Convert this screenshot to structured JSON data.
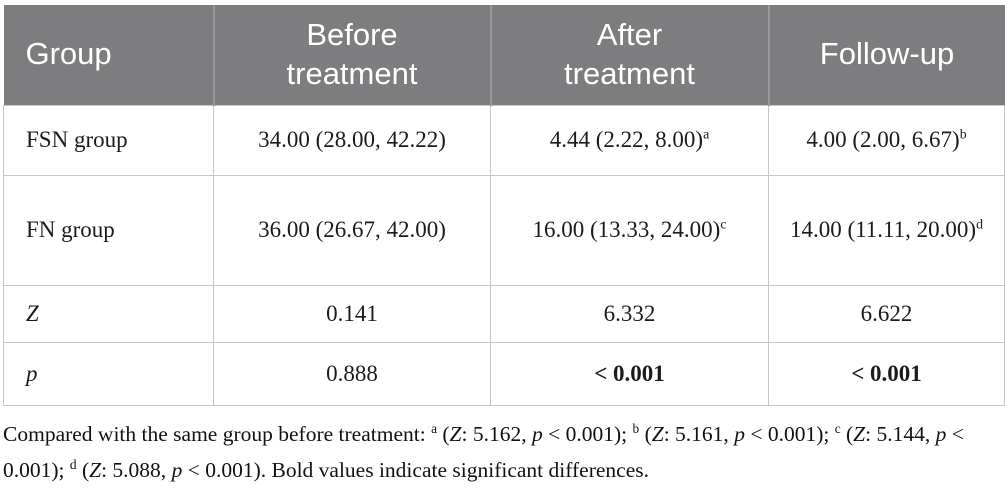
{
  "colors": {
    "header_bg": "#7d7d7f",
    "header_text": "#ffffff",
    "header_divider": "#98989a",
    "cell_border": "#c6c6c6",
    "body_text": "#1b1b1b"
  },
  "table": {
    "headers": [
      {
        "label": "Group"
      },
      {
        "label": "Before treatment"
      },
      {
        "label": "After treatment"
      },
      {
        "label": "Follow-up"
      }
    ],
    "rows": [
      {
        "label": "FSN group",
        "cells": [
          {
            "text": "34.00 (28.00, 42.22)"
          },
          {
            "text": "4.44 (2.22, 8.00)",
            "sup": "a"
          },
          {
            "text": "4.00 (2.00, 6.67)",
            "sup": "b"
          }
        ]
      },
      {
        "label": "FN group",
        "cells": [
          {
            "text": "36.00 (26.67, 42.00)"
          },
          {
            "text": "16.00 (13.33, 24.00)",
            "sup": "c"
          },
          {
            "text": "14.00 (11.11, 20.00)",
            "sup": "d"
          }
        ]
      },
      {
        "label": "Z",
        "cells": [
          {
            "text": "0.141"
          },
          {
            "text": "6.332"
          },
          {
            "text": "6.622"
          }
        ]
      },
      {
        "label": "p",
        "cells": [
          {
            "text": "0.888"
          },
          {
            "text": "< 0.001",
            "bold": true
          },
          {
            "text": "< 0.001",
            "bold": true
          }
        ]
      }
    ]
  },
  "footnote": {
    "segments": [
      {
        "t": "Compared with the same group before treatment: ",
        "style": ""
      },
      {
        "t": "a",
        "style": "sup"
      },
      {
        "t": " (",
        "style": ""
      },
      {
        "t": "Z",
        "style": "i"
      },
      {
        "t": ": 5.162, ",
        "style": ""
      },
      {
        "t": "p",
        "style": "i"
      },
      {
        "t": " < 0.001); ",
        "style": ""
      },
      {
        "t": "b",
        "style": "sup"
      },
      {
        "t": " (",
        "style": ""
      },
      {
        "t": "Z",
        "style": "i"
      },
      {
        "t": ": 5.161, ",
        "style": ""
      },
      {
        "t": "p",
        "style": "i"
      },
      {
        "t": " < 0.001); ",
        "style": ""
      },
      {
        "t": "c",
        "style": "sup"
      },
      {
        "t": " (",
        "style": ""
      },
      {
        "t": "Z",
        "style": "i"
      },
      {
        "t": ": 5.144, ",
        "style": ""
      },
      {
        "t": "p",
        "style": "i"
      },
      {
        "t": " < 0.001); ",
        "style": ""
      },
      {
        "t": "d",
        "style": "sup"
      },
      {
        "t": " (",
        "style": ""
      },
      {
        "t": "Z",
        "style": "i"
      },
      {
        "t": ": 5.088, ",
        "style": ""
      },
      {
        "t": "p",
        "style": "i"
      },
      {
        "t": " < 0.001). Bold values indicate significant differences.",
        "style": ""
      }
    ]
  }
}
